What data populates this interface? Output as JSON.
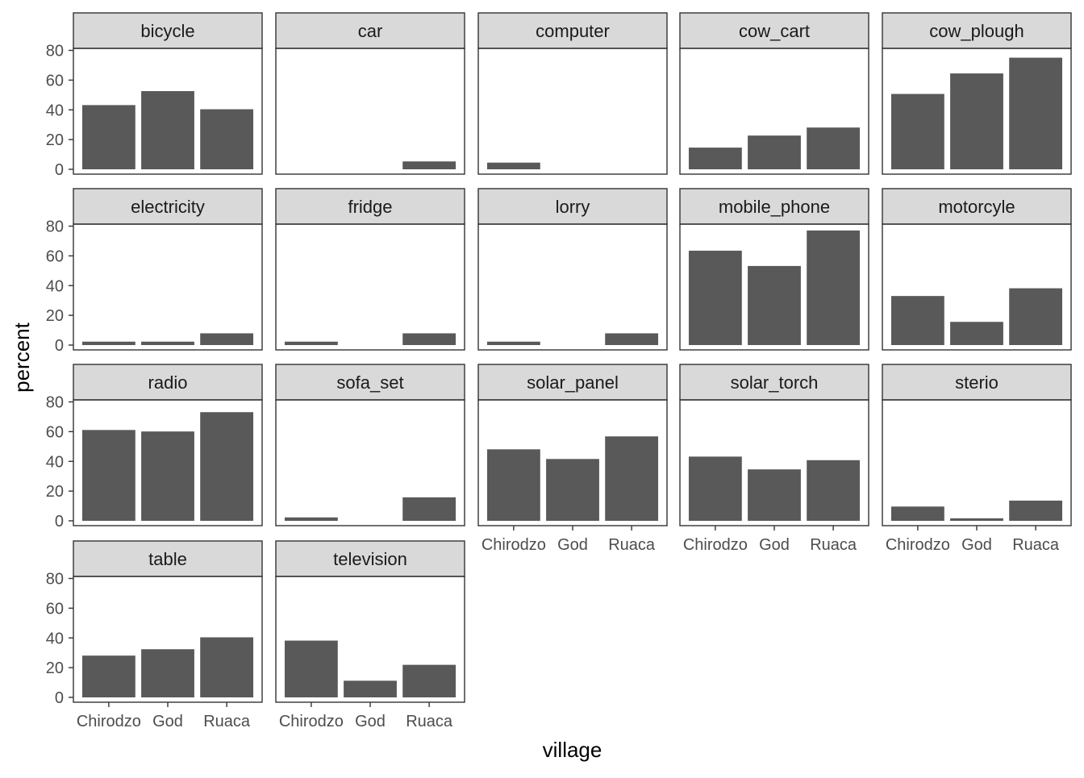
{
  "chart_data": {
    "type": "bar",
    "facet_layout": "wrap",
    "categories": [
      "Chirodzo",
      "God",
      "Ruaca"
    ],
    "xlabel": "village",
    "ylabel": "percent",
    "ylim": [
      0,
      80
    ],
    "yticks": [
      0,
      20,
      40,
      60,
      80
    ],
    "grid": false,
    "legend": "none",
    "colors": {
      "bar": "#595959",
      "strip_fill": "#d9d9d9",
      "border": "#333333"
    },
    "facets": [
      {
        "name": "bicycle",
        "values": [
          43.2,
          52.6,
          40.4
        ]
      },
      {
        "name": "car",
        "values": [
          0,
          0,
          5.3
        ]
      },
      {
        "name": "computer",
        "values": [
          4.5,
          0,
          0
        ]
      },
      {
        "name": "cow_cart",
        "values": [
          14.6,
          22.7,
          28.1
        ]
      },
      {
        "name": "cow_plough",
        "values": [
          50.7,
          64.5,
          75.1
        ]
      },
      {
        "name": "electricity",
        "values": [
          2.3,
          2.3,
          7.9
        ]
      },
      {
        "name": "fridge",
        "values": [
          2.3,
          0,
          7.9
        ]
      },
      {
        "name": "lorry",
        "values": [
          2.3,
          0,
          7.9
        ]
      },
      {
        "name": "mobile_phone",
        "values": [
          63.5,
          53.2,
          77.1
        ]
      },
      {
        "name": "motorcyle",
        "values": [
          33.0,
          15.6,
          38.2
        ]
      },
      {
        "name": "radio",
        "values": [
          61.1,
          60.1,
          73.1
        ]
      },
      {
        "name": "sofa_set",
        "values": [
          2.3,
          0,
          15.8
        ]
      },
      {
        "name": "solar_panel",
        "values": [
          48.1,
          41.6,
          56.8
        ]
      },
      {
        "name": "solar_torch",
        "values": [
          43.2,
          34.6,
          40.8
        ]
      },
      {
        "name": "sterio",
        "values": [
          9.6,
          1.7,
          13.6
        ]
      },
      {
        "name": "table",
        "values": [
          28.1,
          32.4,
          40.4
        ]
      },
      {
        "name": "television",
        "values": [
          38.2,
          11.2,
          21.9
        ]
      }
    ]
  }
}
